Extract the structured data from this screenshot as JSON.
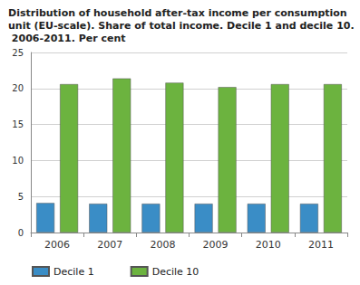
{
  "chart_data": {
    "type": "bar",
    "title": "Distribution of household after-tax income per consumption unit (EU-scale). Share of total income. Decile 1 and decile 10. 2006-2011. Per cent",
    "categories": [
      "2006",
      "2007",
      "2008",
      "2009",
      "2010",
      "2011"
    ],
    "series": [
      {
        "name": "Decile 1",
        "color": "#3a8dc6",
        "values": [
          4.1,
          4.0,
          4.0,
          4.0,
          4.0,
          4.0
        ]
      },
      {
        "name": "Decile 10",
        "color": "#6cb33f",
        "values": [
          20.6,
          21.4,
          20.8,
          20.2,
          20.6,
          20.6
        ]
      }
    ],
    "ylim": [
      0,
      25
    ],
    "yticks": [
      0,
      5,
      10,
      15,
      20,
      25
    ],
    "grid": true,
    "legend": "bottom"
  }
}
